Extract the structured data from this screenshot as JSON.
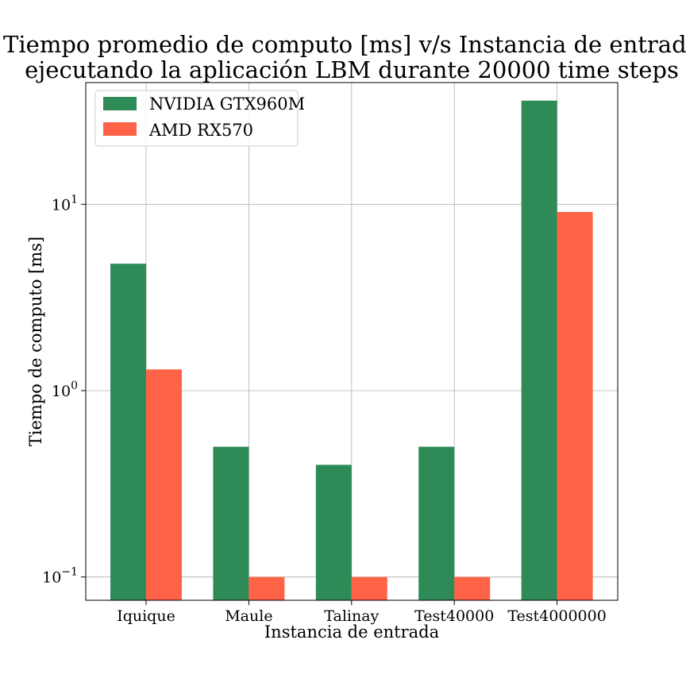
{
  "chart_data": {
    "type": "bar",
    "title": "Tiempo promedio de computo [ms] v/s Instancia de entrada",
    "subtitle": "ejecutando la aplicación LBM durante 20000 time steps",
    "xlabel": "Instancia de entrada",
    "ylabel": "Tiempo de computo [ms]",
    "yscale": "log",
    "ylim": [
      0.075,
      45
    ],
    "yticks": [
      {
        "value": 0.1,
        "base": "10",
        "exp": "−1"
      },
      {
        "value": 1,
        "base": "10",
        "exp": "0"
      },
      {
        "value": 10,
        "base": "10",
        "exp": "1"
      }
    ],
    "categories": [
      "Iquique",
      "Maule",
      "Talinay",
      "Test40000",
      "Test4000000"
    ],
    "series": [
      {
        "name": "NVIDIA GTX960M",
        "color": "#2e8b57",
        "values": [
          4.8,
          0.5,
          0.4,
          0.5,
          36
        ]
      },
      {
        "name": "AMD RX570",
        "color": "#ff6347",
        "values": [
          1.3,
          0.1,
          0.1,
          0.1,
          9.1
        ]
      }
    ],
    "grid": true,
    "legend_position": "top-left"
  }
}
